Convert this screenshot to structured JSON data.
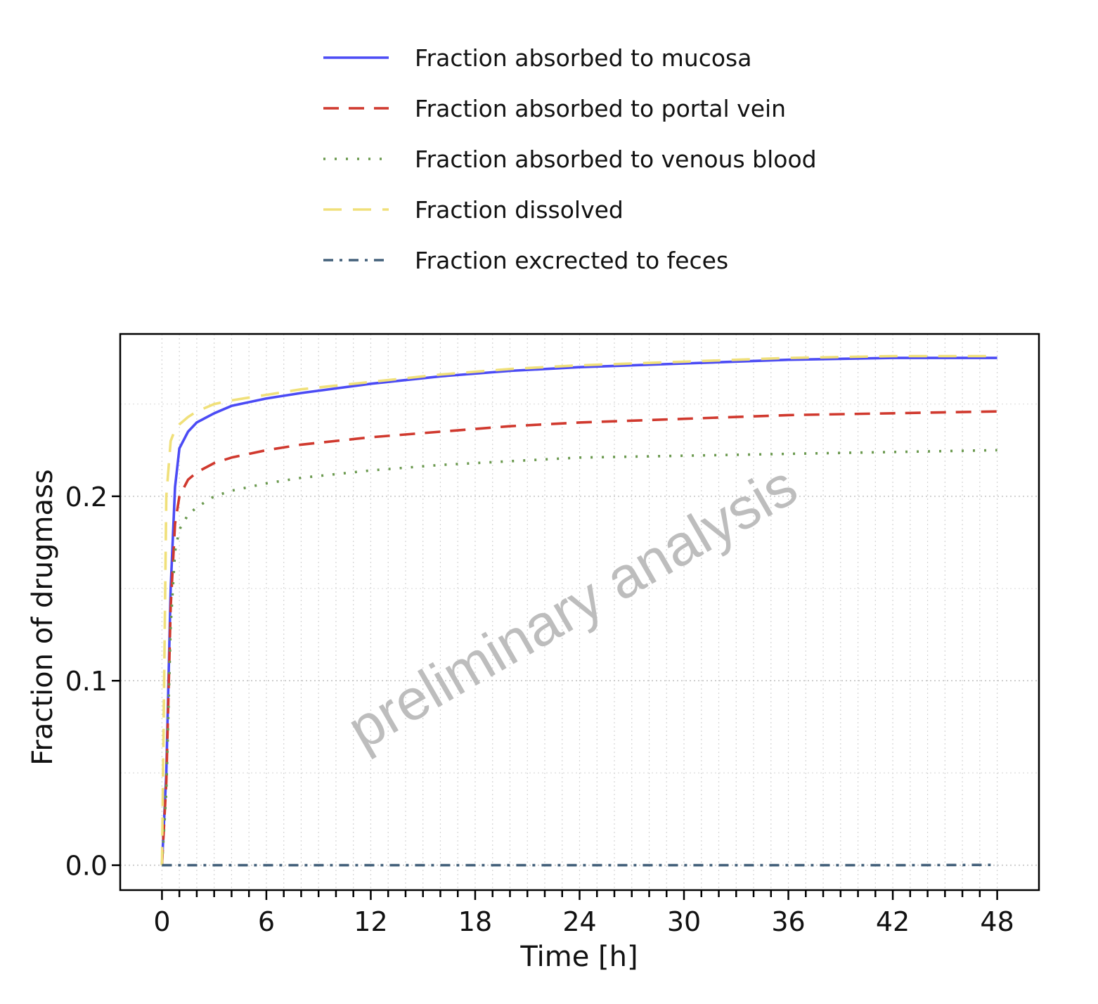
{
  "chart_data": {
    "type": "line",
    "title": "",
    "xlabel": "Time [h]",
    "ylabel": "Fraction of drugmass",
    "xlim": [
      -2.4,
      50.4
    ],
    "ylim": [
      -0.0135,
      0.288
    ],
    "xticks": [
      0,
      6,
      12,
      18,
      24,
      30,
      36,
      42,
      48
    ],
    "yticks": [
      0.0,
      0.1,
      0.2
    ],
    "ytick_labels": [
      "0.0",
      "0.1",
      "0.2"
    ],
    "grid": true,
    "legend_position": "top",
    "watermark": "preliminary analysis",
    "x": [
      0,
      0.25,
      0.5,
      0.75,
      1,
      1.5,
      2,
      3,
      4,
      6,
      8,
      12,
      16,
      20,
      24,
      30,
      36,
      42,
      48
    ],
    "series": [
      {
        "name": "Fraction absorbed to mucosa",
        "color": "#4b4bf5",
        "dash": "solid",
        "values": [
          0,
          0.05,
          0.15,
          0.205,
          0.226,
          0.235,
          0.24,
          0.245,
          0.249,
          0.253,
          0.256,
          0.261,
          0.265,
          0.268,
          0.27,
          0.272,
          0.274,
          0.275,
          0.275
        ]
      },
      {
        "name": "Fraction absorbed to portal vein",
        "color": "#d0392e",
        "dash": "dashed",
        "values": [
          0,
          0.045,
          0.14,
          0.185,
          0.2,
          0.209,
          0.213,
          0.218,
          0.221,
          0.225,
          0.228,
          0.232,
          0.235,
          0.238,
          0.24,
          0.242,
          0.244,
          0.245,
          0.246
        ]
      },
      {
        "name": "Fraction absorbed to venous blood",
        "color": "#6a994e",
        "dash": "dotted",
        "values": [
          0,
          0.04,
          0.13,
          0.17,
          0.182,
          0.19,
          0.194,
          0.2,
          0.203,
          0.207,
          0.21,
          0.214,
          0.217,
          0.219,
          0.221,
          0.222,
          0.223,
          0.224,
          0.225
        ]
      },
      {
        "name": "Fraction dissolved",
        "color": "#f0e07a",
        "dash": "longdash",
        "values": [
          0,
          0.2,
          0.23,
          0.236,
          0.239,
          0.243,
          0.246,
          0.25,
          0.252,
          0.255,
          0.258,
          0.262,
          0.266,
          0.269,
          0.271,
          0.273,
          0.275,
          0.276,
          0.276
        ]
      },
      {
        "name": "Fraction excrected to feces",
        "color": "#44617b",
        "dash": "dotdash",
        "values": [
          0,
          0,
          0,
          0,
          0,
          0,
          0,
          0,
          0,
          0,
          0,
          0,
          0,
          0,
          0,
          0,
          0,
          0,
          0.0002
        ]
      }
    ]
  }
}
